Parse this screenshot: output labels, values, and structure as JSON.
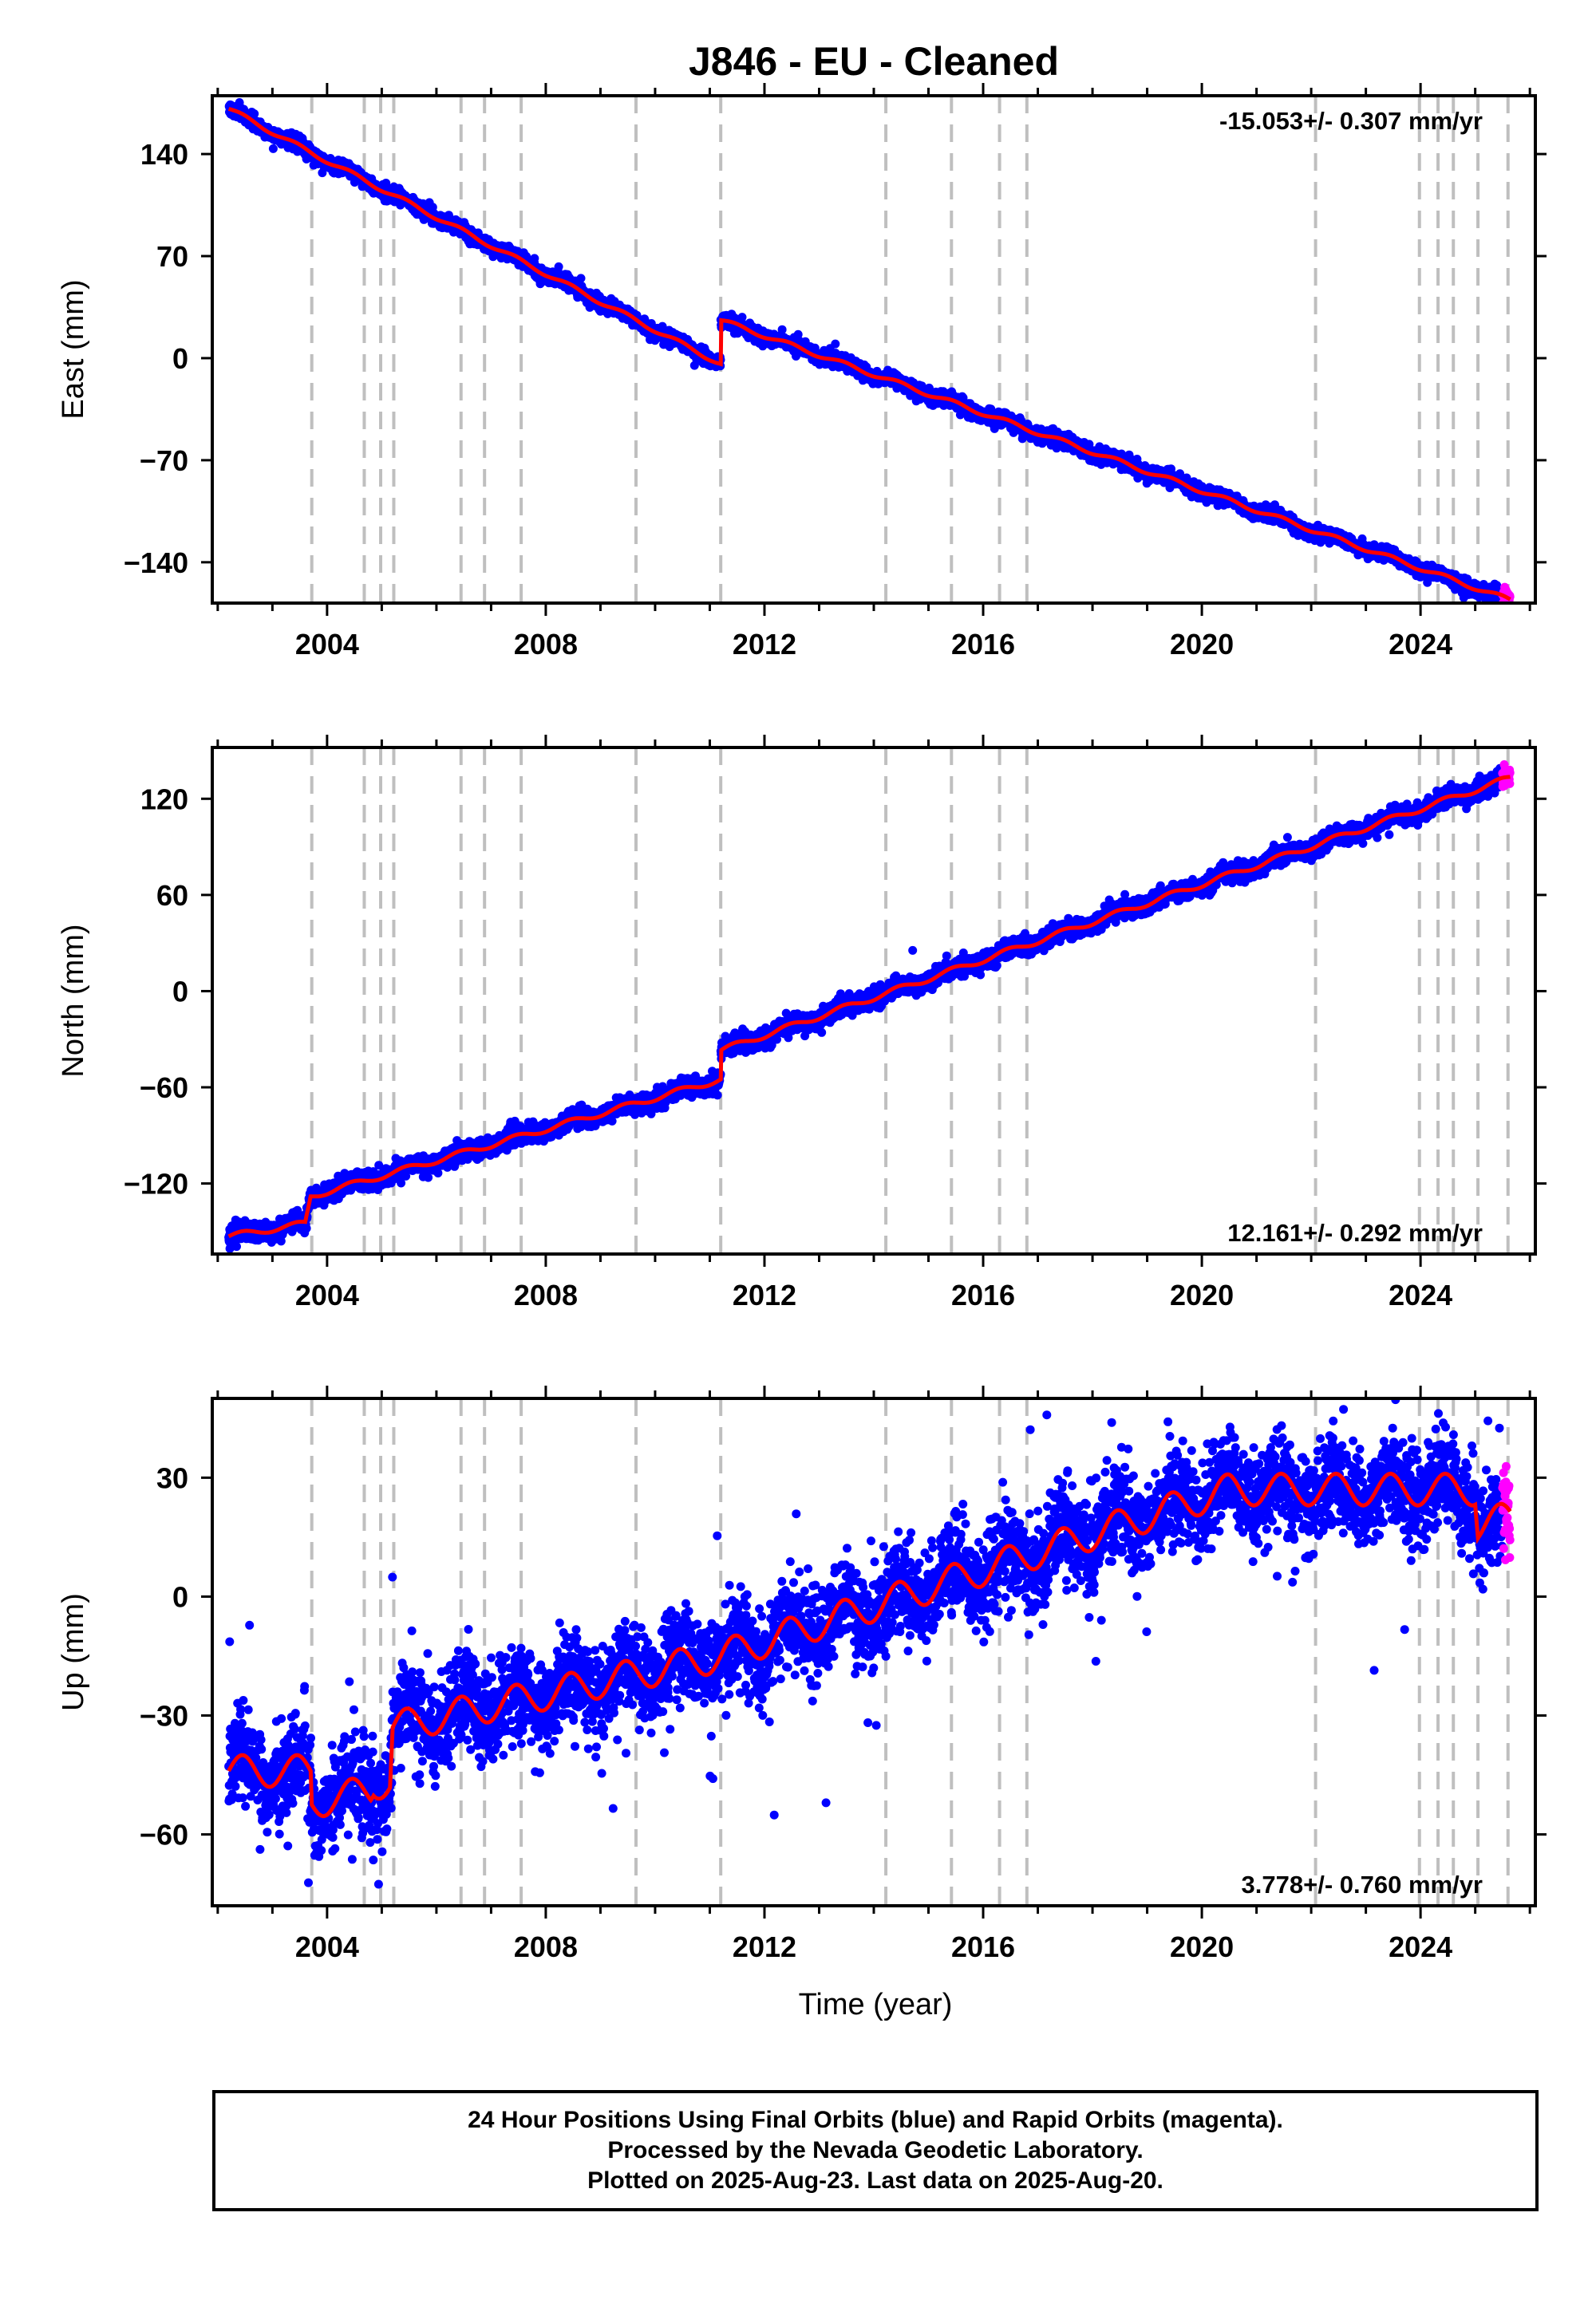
{
  "title": "J846  - EU - Cleaned",
  "xlabel": "Time (year)",
  "footer": {
    "line1": "24 Hour Positions Using Final Orbits (blue) and Rapid Orbits (magenta).",
    "line2": "Processed by the Nevada Geodetic Laboratory.",
    "line3": "Plotted on 2025-Aug-23. Last data on 2025-Aug-20."
  },
  "colors": {
    "final": "#0000ff",
    "rapid": "#ff00ff",
    "model": "#ff0000",
    "steps": "#bfbfbf"
  },
  "chart_data": [
    {
      "type": "scatter",
      "name": "east",
      "ylabel": "East (mm)",
      "rate_text": "-15.053+/- 0.307 mm/yr",
      "rate_position": "top-right",
      "xlim": [
        2001.9,
        2026.1
      ],
      "ylim": [
        -168,
        180
      ],
      "yticks": [
        140,
        70,
        0,
        -70,
        -140
      ],
      "xticks": [
        2004,
        2008,
        2012,
        2016,
        2020,
        2024
      ],
      "start": 2002.2,
      "end": 2025.64,
      "rapid_from": 2025.5,
      "model": {
        "knots": [
          [
            2002.2,
            171
          ],
          [
            2003.6,
            143
          ],
          [
            2011.2,
            -4
          ],
          [
            2011.2,
            26
          ],
          [
            2025.64,
            -166
          ]
        ],
        "annual_amp": 1.5
      },
      "noise_sd": 2.3,
      "outlier_frac": 0.002,
      "grid": false
    },
    {
      "type": "scatter",
      "name": "north",
      "ylabel": "North (mm)",
      "rate_text": "12.161+/- 0.292 mm/yr",
      "rate_position": "bottom-right",
      "xlim": [
        2001.9,
        2026.1
      ],
      "ylim": [
        -164,
        152
      ],
      "yticks": [
        120,
        60,
        0,
        -60,
        -120
      ],
      "xticks": [
        2004,
        2008,
        2012,
        2016,
        2020,
        2024
      ],
      "start": 2002.2,
      "end": 2025.64,
      "rapid_from": 2025.5,
      "model": {
        "knots": [
          [
            2002.2,
            -153
          ],
          [
            2003.6,
            -145
          ],
          [
            2003.7,
            -128
          ],
          [
            2011.2,
            -55
          ],
          [
            2011.2,
            -37
          ],
          [
            2025.64,
            133
          ]
        ],
        "annual_amp": 1.8
      },
      "noise_sd": 2.8,
      "outlier_frac": 0.003,
      "grid": false
    },
    {
      "type": "scatter",
      "name": "up",
      "ylabel": "Up (mm)",
      "rate_text": "3.778+/- 0.760 mm/yr",
      "rate_position": "bottom-right",
      "xlim": [
        2001.9,
        2026.1
      ],
      "ylim": [
        -78,
        50
      ],
      "yticks": [
        30,
        0,
        -30,
        -60
      ],
      "xticks": [
        2004,
        2008,
        2012,
        2016,
        2020,
        2024
      ],
      "start": 2002.2,
      "end": 2025.64,
      "rapid_from": 2025.5,
      "model": {
        "knots": [
          [
            2002.2,
            -44
          ],
          [
            2003.7,
            -44
          ],
          [
            2003.72,
            -52
          ],
          [
            2004.8,
            -49
          ],
          [
            2004.85,
            -47
          ],
          [
            2005.15,
            -47
          ],
          [
            2005.2,
            -33
          ],
          [
            2011.2,
            -15
          ],
          [
            2020.5,
            27
          ],
          [
            2025.0,
            27
          ],
          [
            2025.05,
            18
          ],
          [
            2025.64,
            20
          ]
        ],
        "annual_amp": 4.0
      },
      "noise_sd": 5.8,
      "outlier_frac": 0.02,
      "grid": false
    }
  ],
  "steps": [
    2003.72,
    2004.68,
    2004.98,
    2005.22,
    2006.45,
    2006.88,
    2007.55,
    2009.65,
    2011.2,
    2014.22,
    2015.42,
    2016.3,
    2016.8,
    2022.08,
    2023.98,
    2024.32,
    2024.6,
    2025.05,
    2025.6
  ]
}
